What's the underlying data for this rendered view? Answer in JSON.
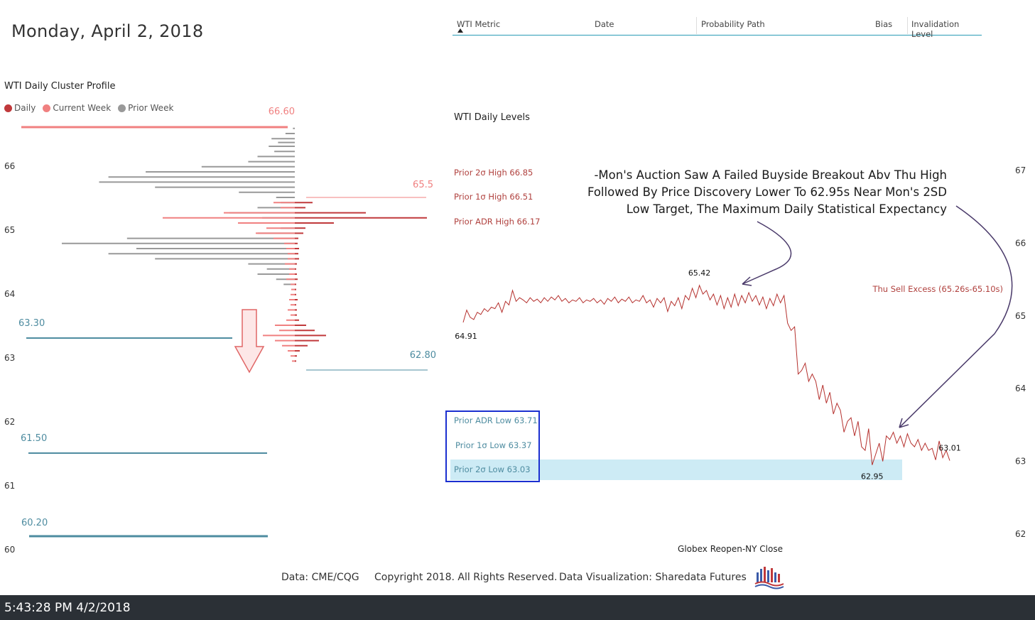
{
  "header": {
    "date_title": "Monday, April 2, 2018"
  },
  "table": {
    "columns": [
      "WTI Metric",
      "Date",
      "Probability Path",
      "Bias",
      "Invalidation Level"
    ]
  },
  "profile": {
    "title": "WTI Daily Cluster Profile",
    "legend": [
      {
        "label": "Daily",
        "color": "#c0393b"
      },
      {
        "label": "Current Week",
        "color": "#f08080"
      },
      {
        "label": "Prior Week",
        "color": "#999999"
      }
    ],
    "y_ticks": [
      "66",
      "65",
      "64",
      "63",
      "62",
      "61",
      "60"
    ],
    "levels": [
      {
        "label": "66.60",
        "value": 66.6,
        "color": "#f08080"
      },
      {
        "label": "65.5",
        "value": 65.5,
        "color": "#f08080"
      },
      {
        "label": "63.30",
        "value": 63.3,
        "color": "#4e8ca0"
      },
      {
        "label": "62.80",
        "value": 62.8,
        "color": "#4e8ca0"
      },
      {
        "label": "61.50",
        "value": 61.5,
        "color": "#4e8ca0"
      },
      {
        "label": "60.20",
        "value": 60.2,
        "color": "#4e8ca0"
      }
    ]
  },
  "levels_panel": {
    "title": "WTI Daily Levels",
    "upper": [
      "Prior 2σ High 66.85",
      "Prior 1σ High 66.51",
      "Prior ADR High 66.17"
    ],
    "lower": [
      "Prior ADR Low 63.71",
      "Prior 1σ Low 63.37",
      "Prior 2σ Low 63.03"
    ]
  },
  "price_chart": {
    "annotation_lines": [
      "-Mon's Auction Saw A Failed Buyside Breakout Abv Thu High",
      "Followed By Price  Discovery Lower To 62.95s Near Mon's 2SD",
      "Low Target, The Maximum Daily Statistical Expectancy"
    ],
    "excess_label": "Thu Sell Excess (65.26s-65.10s)",
    "point_labels": {
      "open": "64.91",
      "high": "65.42",
      "low": "62.95",
      "last": "63.01"
    },
    "y_ticks": [
      "67",
      "66",
      "65",
      "64",
      "63",
      "62"
    ],
    "x_label": "Globex Reopen-NY Close"
  },
  "credits": {
    "data": "Data: CME/CQG",
    "copyright": "Copyright 2018. All Rights Reserved.",
    "viz": "Data Visualization: Sharedata Futures"
  },
  "status_bar": {
    "timestamp": "5:43:28 PM 4/2/2018"
  },
  "chart_data": [
    {
      "type": "bar",
      "title": "WTI Daily Cluster Profile",
      "orientation": "horizontal",
      "ylim": [
        60,
        66.9
      ],
      "series": [
        {
          "name": "Prior Week",
          "prices": [
            66.58,
            66.5,
            66.42,
            66.36,
            66.3,
            66.22,
            66.14,
            66.06,
            65.98,
            65.9,
            65.82,
            65.74,
            65.66,
            65.58,
            65.5,
            65.42,
            65.34,
            65.26,
            65.18,
            65.1,
            65.02,
            64.94,
            64.86,
            64.78,
            64.7,
            64.62,
            64.54,
            64.46,
            64.38,
            64.3,
            64.22,
            64.14
          ],
          "values": [
            2,
            10,
            25,
            18,
            28,
            22,
            40,
            50,
            100,
            160,
            200,
            210,
            150,
            60,
            20,
            15,
            40,
            70,
            35,
            30,
            15,
            40,
            180,
            250,
            170,
            200,
            150,
            50,
            30,
            40,
            20,
            12
          ]
        },
        {
          "name": "Current Week",
          "prices": [
            65.42,
            65.34,
            65.26,
            65.18,
            65.1,
            65.02,
            64.94,
            64.86,
            64.78,
            64.7,
            64.62,
            64.54,
            64.46,
            64.38,
            64.3,
            64.22,
            64.14,
            64.06,
            63.98,
            63.9,
            63.82,
            63.74,
            63.66,
            63.58,
            63.5,
            63.42,
            63.34,
            63.26,
            63.18,
            63.1,
            63.02,
            62.94
          ],
          "values": [
            30,
            20,
            100,
            186,
            80,
            40,
            55,
            30,
            15,
            12,
            10,
            10,
            14,
            8,
            8,
            12,
            6,
            5,
            6,
            8,
            6,
            10,
            6,
            12,
            28,
            22,
            45,
            28,
            18,
            10,
            6,
            4
          ]
        },
        {
          "name": "Daily",
          "prices": [
            65.42,
            65.34,
            65.26,
            65.18,
            65.1,
            65.02,
            64.94,
            64.86,
            64.78,
            64.7,
            64.62,
            64.54,
            64.46,
            64.38,
            64.3,
            64.22,
            64.14,
            64.06,
            63.98,
            63.9,
            63.82,
            63.74,
            63.66,
            63.58,
            63.5,
            63.42,
            63.34,
            63.26,
            63.18,
            63.1,
            63.02,
            62.94
          ],
          "values": [
            25,
            15,
            100,
            186,
            55,
            15,
            12,
            5,
            4,
            6,
            5,
            6,
            3,
            2,
            3,
            4,
            2,
            2,
            2,
            4,
            2,
            3,
            3,
            6,
            16,
            28,
            44,
            34,
            18,
            7,
            3,
            2
          ]
        }
      ]
    },
    {
      "type": "line",
      "title": "WTI Daily Levels",
      "xlabel": "Globex Reopen-NY Close",
      "ylim": [
        62,
        67
      ],
      "series": [
        {
          "values": [
            64.91,
            65.08,
            64.98,
            64.95,
            65.05,
            65.02,
            65.1,
            65.06,
            65.12,
            65.1,
            65.18,
            65.05,
            65.2,
            65.15,
            65.35,
            65.2,
            65.25,
            65.22,
            65.18,
            65.25,
            65.2,
            65.23,
            65.18,
            65.25,
            65.2,
            65.26,
            65.22,
            65.28,
            65.2,
            65.24,
            65.18,
            65.22,
            65.2,
            65.25,
            65.18,
            65.22,
            65.2,
            65.24,
            65.18,
            65.22,
            65.16,
            65.24,
            65.2,
            65.26,
            65.18,
            65.23,
            65.2,
            65.26,
            65.18,
            65.22,
            65.2,
            65.28,
            65.18,
            65.22,
            65.12,
            65.24,
            65.18,
            65.25,
            65.06,
            65.2,
            65.14,
            65.25,
            65.1,
            65.28,
            65.22,
            65.38,
            65.25,
            65.42,
            65.3,
            65.35,
            65.22,
            65.3,
            65.15,
            65.28,
            65.1,
            65.25,
            65.12,
            65.3,
            65.14,
            65.28,
            65.18,
            65.32,
            65.2,
            65.28,
            65.15,
            65.26,
            65.1,
            65.24,
            65.14,
            65.3,
            65.18,
            65.28,
            64.9,
            64.8,
            64.85,
            64.2,
            64.25,
            64.35,
            64.1,
            64.2,
            64.1,
            63.85,
            64.05,
            63.8,
            63.95,
            63.65,
            63.8,
            63.7,
            63.4,
            63.55,
            63.6,
            63.35,
            63.55,
            63.2,
            63.15,
            63.45,
            62.95,
            63.1,
            63.25,
            63.0,
            63.35,
            63.3,
            63.4,
            63.25,
            63.35,
            63.2,
            63.38,
            63.25,
            63.2,
            63.3,
            63.15,
            63.25,
            63.15,
            63.18,
            63.02,
            63.28,
            63.05,
            63.15,
            63.01
          ]
        }
      ],
      "annotations": [
        {
          "label": "64.91",
          "value": 64.91
        },
        {
          "label": "65.42",
          "value": 65.42
        },
        {
          "label": "62.95",
          "value": 62.95
        },
        {
          "label": "63.01",
          "value": 63.01
        }
      ]
    }
  ]
}
